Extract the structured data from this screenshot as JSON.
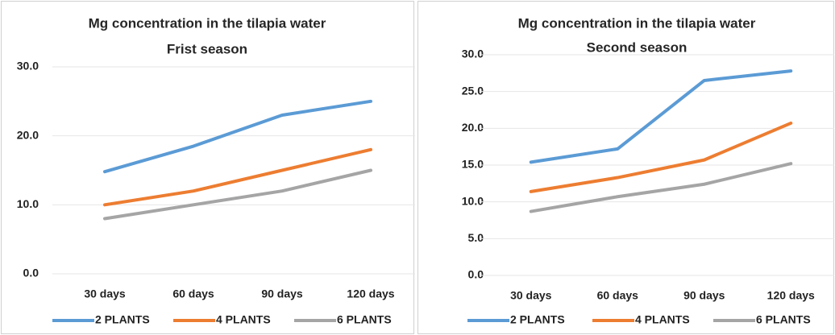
{
  "chart_data": [
    {
      "type": "line",
      "title": "Mg concentration in the tilapia water",
      "subtitle": "Frist season",
      "categories": [
        "30 days",
        "60 days",
        "90 days",
        "120 days"
      ],
      "series": [
        {
          "name": "2 PLANTS",
          "color": "#5b9bd5",
          "values": [
            14.8,
            18.5,
            23,
            25
          ]
        },
        {
          "name": "4 PLANTS",
          "color": "#ed7d31",
          "values": [
            10,
            12,
            15,
            18
          ]
        },
        {
          "name": "6 PLANTS",
          "color": "#a5a5a5",
          "values": [
            8,
            10,
            12,
            15
          ]
        }
      ],
      "ylim": [
        0,
        30
      ],
      "yticks": [
        {
          "value": 0,
          "label": "0.0"
        },
        {
          "value": 10,
          "label": "10.0"
        },
        {
          "value": 20,
          "label": "20.0"
        },
        {
          "value": 30,
          "label": "30.0"
        }
      ],
      "grid": true,
      "legend": "bottom"
    },
    {
      "type": "line",
      "title": "Mg concentration in the tilapia water",
      "subtitle": "Second season",
      "categories": [
        "30 days",
        "60 days",
        "90 days",
        "120 days"
      ],
      "series": [
        {
          "name": "2 PLANTS",
          "color": "#5b9bd5",
          "values": [
            15.4,
            17.2,
            26.5,
            27.8
          ]
        },
        {
          "name": "4 PLANTS",
          "color": "#ed7d31",
          "values": [
            11.4,
            13.3,
            15.7,
            20.7
          ]
        },
        {
          "name": "6 PLANTS",
          "color": "#a5a5a5",
          "values": [
            8.7,
            10.7,
            12.4,
            15.2
          ]
        }
      ],
      "ylim": [
        0,
        30
      ],
      "yticks": [
        {
          "value": 0,
          "label": "0.0"
        },
        {
          "value": 5,
          "label": "5.0"
        },
        {
          "value": 10,
          "label": "10.0"
        },
        {
          "value": 15,
          "label": "15.0"
        },
        {
          "value": 20,
          "label": "20.0"
        },
        {
          "value": 25,
          "label": "25.0"
        },
        {
          "value": 30,
          "label": "30.0"
        }
      ],
      "grid": true,
      "legend": "bottom"
    }
  ]
}
